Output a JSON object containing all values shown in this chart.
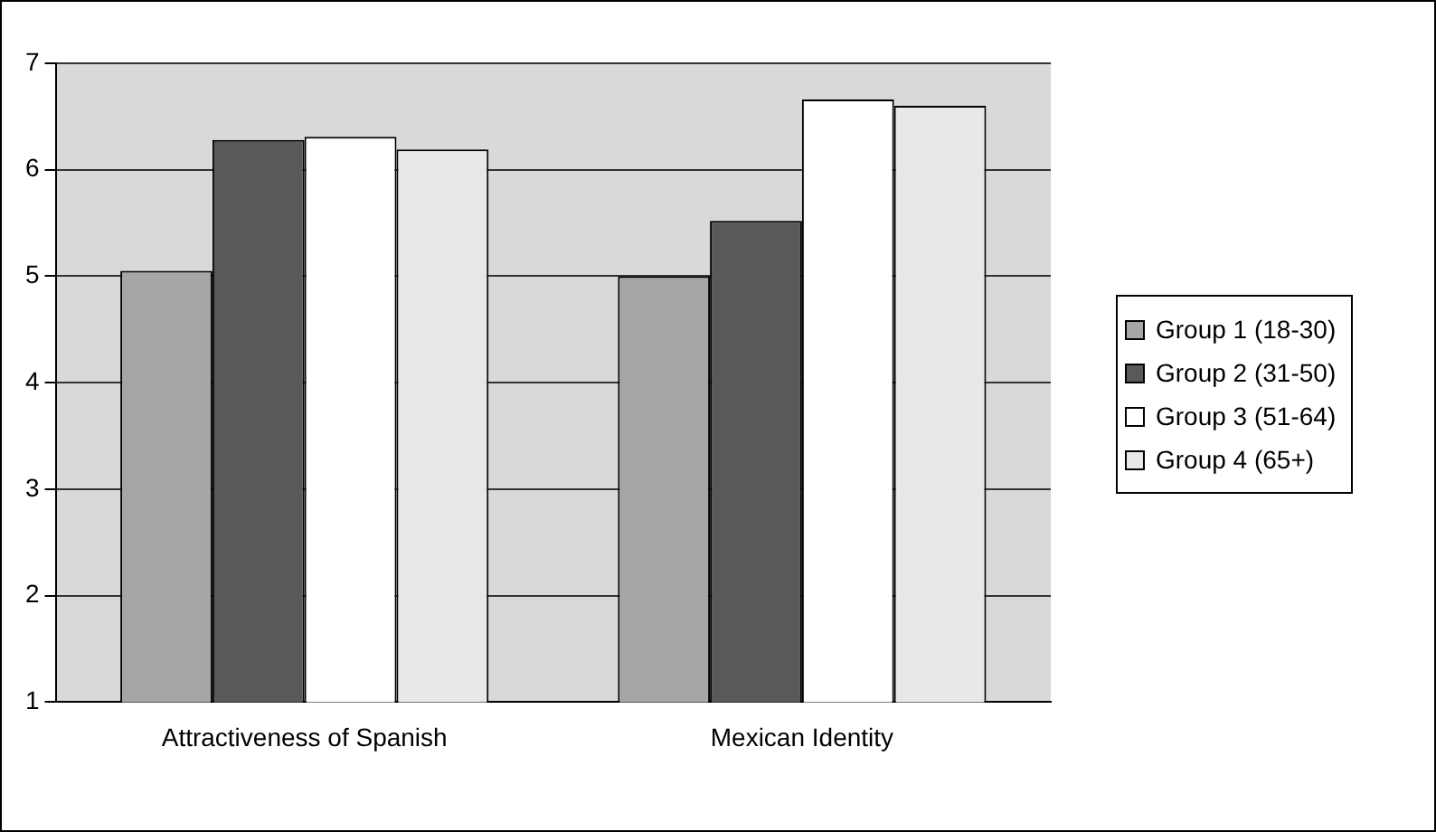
{
  "chart_data": {
    "type": "bar",
    "categories": [
      "Attractiveness of Spanish",
      "Mexican Identity"
    ],
    "series": [
      {
        "name": "Group 1 (18-30)",
        "color": "#a6a6a6",
        "values": [
          5.05,
          5.0
        ]
      },
      {
        "name": "Group 2 (31-50)",
        "color": "#595959",
        "values": [
          6.28,
          5.52
        ]
      },
      {
        "name": "Group 3 (51-64)",
        "color": "#ffffff",
        "values": [
          6.31,
          6.66
        ]
      },
      {
        "name": "Group 4 (65+)",
        "color": "#e8e8e8",
        "values": [
          6.19,
          6.6
        ]
      }
    ],
    "ylim": [
      1,
      7
    ],
    "yticks": [
      1,
      2,
      3,
      4,
      5,
      6,
      7
    ],
    "grid": "y",
    "legend": "right"
  }
}
